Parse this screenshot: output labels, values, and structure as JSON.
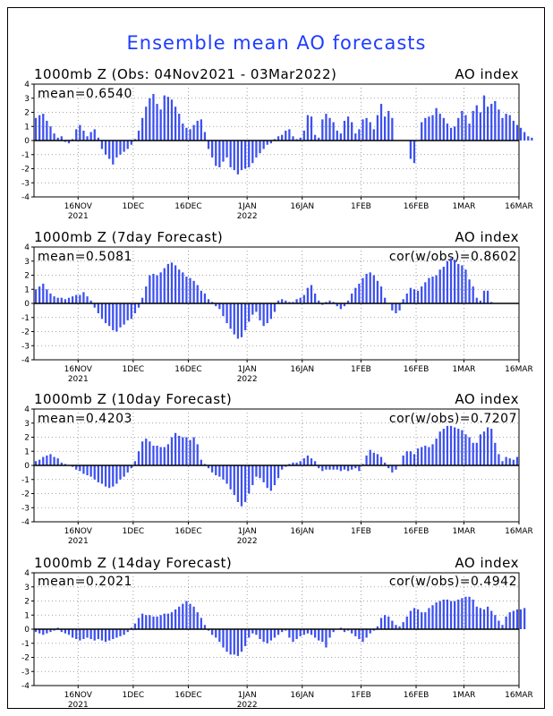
{
  "figure_title": "Ensemble mean AO forecasts",
  "colors": {
    "bar": "#3c50f0",
    "title": "#1e3cff",
    "grid": "#888888"
  },
  "chart_data": [
    {
      "type": "bar",
      "title": "1000mb Z (Obs: 04Nov2021 - 03Mar2022)",
      "index_label": "AO index",
      "mean_label": "mean=0.6540",
      "cor_label": "",
      "ylim": [
        -4,
        4
      ],
      "yticks": [
        4,
        3,
        2,
        1,
        0,
        -1,
        -2,
        -3,
        -4
      ],
      "grid": true,
      "x_start": "2021-11-04",
      "x_end": "2022-03-16",
      "xticks": [
        {
          "label": "16NOV",
          "sublabel": "2021",
          "date": "2021-11-16"
        },
        {
          "label": "1DEC",
          "sublabel": "",
          "date": "2021-12-01"
        },
        {
          "label": "16DEC",
          "sublabel": "",
          "date": "2021-12-16"
        },
        {
          "label": "1JAN",
          "sublabel": "2022",
          "date": "2022-01-01"
        },
        {
          "label": "16JAN",
          "sublabel": "",
          "date": "2022-01-16"
        },
        {
          "label": "1FEB",
          "sublabel": "",
          "date": "2022-02-01"
        },
        {
          "label": "16FEB",
          "sublabel": "",
          "date": "2022-02-16"
        },
        {
          "label": "1MAR",
          "sublabel": "",
          "date": "2022-03-01"
        },
        {
          "label": "16MAR",
          "sublabel": "",
          "date": "2022-03-16"
        }
      ],
      "values": [
        1.6,
        1.8,
        1.9,
        1.4,
        1.0,
        0.5,
        0.2,
        0.3,
        -0.1,
        -0.2,
        0.1,
        0.8,
        1.1,
        0.7,
        0.3,
        0.6,
        0.8,
        0.2,
        -0.6,
        -1.0,
        -1.3,
        -1.7,
        -1.2,
        -1.0,
        -0.8,
        -0.6,
        -0.3,
        0.1,
        0.7,
        1.6,
        2.4,
        3.0,
        3.3,
        2.6,
        2.2,
        3.2,
        3.1,
        2.9,
        2.4,
        1.9,
        1.2,
        0.9,
        0.8,
        1.1,
        1.4,
        1.5,
        0.6,
        -0.6,
        -1.2,
        -1.8,
        -1.9,
        -1.5,
        -1.2,
        -1.9,
        -2.1,
        -2.4,
        -2.1,
        -2.0,
        -1.9,
        -1.6,
        -1.2,
        -0.9,
        -0.6,
        -0.3,
        -0.2,
        0.1,
        0.3,
        0.4,
        0.7,
        0.8,
        0.3,
        0.1,
        0.2,
        0.7,
        1.8,
        1.7,
        0.4,
        0.2,
        1.5,
        1.9,
        1.6,
        1.3,
        0.7,
        0.5,
        1.4,
        1.7,
        1.3,
        0.5,
        0.8,
        1.5,
        1.6,
        1.3,
        0.8,
        1.8,
        2.6,
        1.7,
        2.1,
        1.6,
        0.0,
        0.0,
        0.0,
        0.0,
        -1.3,
        -1.6,
        0.0,
        1.3,
        1.6,
        1.7,
        1.8,
        2.3,
        1.9,
        1.6,
        1.2,
        0.9,
        1.0,
        1.6,
        2.1,
        1.8,
        1.2,
        2.1,
        2.5,
        2.0,
        3.2,
        2.4,
        2.6,
        2.8,
        2.2,
        1.6,
        1.9,
        1.8,
        1.4,
        1.1,
        0.9,
        0.6,
        0.3,
        0.2
      ]
    },
    {
      "type": "bar",
      "title": "1000mb Z (7day Forecast)",
      "index_label": "AO index",
      "mean_label": "mean=0.5081",
      "cor_label": "cor(w/obs)=0.8602",
      "ylim": [
        -4,
        4
      ],
      "yticks": [
        4,
        3,
        2,
        1,
        0,
        -1,
        -2,
        -3,
        -4
      ],
      "grid": true,
      "x_start": "2021-11-04",
      "x_end": "2022-03-16",
      "xticks": [
        {
          "label": "16NOV",
          "sublabel": "2021",
          "date": "2021-11-16"
        },
        {
          "label": "1DEC",
          "sublabel": "",
          "date": "2021-12-01"
        },
        {
          "label": "16DEC",
          "sublabel": "",
          "date": "2021-12-16"
        },
        {
          "label": "1JAN",
          "sublabel": "2022",
          "date": "2022-01-01"
        },
        {
          "label": "16JAN",
          "sublabel": "",
          "date": "2022-01-16"
        },
        {
          "label": "1FEB",
          "sublabel": "",
          "date": "2022-02-01"
        },
        {
          "label": "16FEB",
          "sublabel": "",
          "date": "2022-02-16"
        },
        {
          "label": "1MAR",
          "sublabel": "",
          "date": "2022-03-01"
        },
        {
          "label": "16MAR",
          "sublabel": "",
          "date": "2022-03-16"
        }
      ],
      "values": [
        1.0,
        1.2,
        1.4,
        1.0,
        0.7,
        0.5,
        0.4,
        0.4,
        0.3,
        0.4,
        0.5,
        0.6,
        0.6,
        0.8,
        0.5,
        0.2,
        -0.3,
        -0.7,
        -1.1,
        -1.4,
        -1.6,
        -1.9,
        -2.0,
        -1.7,
        -1.5,
        -1.2,
        -1.1,
        -0.7,
        -0.3,
        0.4,
        1.2,
        2.0,
        2.1,
        2.0,
        2.2,
        2.5,
        2.8,
        2.9,
        2.7,
        2.4,
        2.2,
        1.9,
        1.8,
        1.6,
        1.3,
        0.9,
        0.7,
        0.3,
        0.1,
        -0.2,
        -0.4,
        -0.9,
        -1.4,
        -1.8,
        -2.2,
        -2.5,
        -2.4,
        -1.9,
        -1.3,
        -0.8,
        -0.6,
        -1.2,
        -1.6,
        -1.4,
        -1.1,
        -0.6,
        0.2,
        0.3,
        0.2,
        0.1,
        0.1,
        0.3,
        0.4,
        0.6,
        1.1,
        1.3,
        0.7,
        0.2,
        -0.1,
        0.1,
        0.2,
        0.1,
        -0.2,
        -0.4,
        -0.2,
        0.2,
        0.7,
        1.1,
        1.4,
        1.8,
        2.1,
        2.2,
        2.0,
        1.6,
        1.2,
        0.4,
        0.0,
        -0.5,
        -0.7,
        -0.5,
        0.3,
        0.7,
        1.1,
        1.0,
        0.9,
        1.2,
        1.5,
        1.8,
        1.9,
        2.0,
        2.4,
        2.6,
        3.0,
        3.2,
        3.1,
        2.8,
        2.7,
        2.4,
        1.7,
        1.2,
        0.4,
        0.2,
        0.9,
        0.9,
        0.1,
        0.0
      ]
    },
    {
      "type": "bar",
      "title": "1000mb Z (10day Forecast)",
      "index_label": "AO index",
      "mean_label": "mean=0.4203",
      "cor_label": "cor(w/obs)=0.7207",
      "ylim": [
        -4,
        4
      ],
      "yticks": [
        4,
        3,
        2,
        1,
        0,
        -1,
        -2,
        -3,
        -4
      ],
      "grid": true,
      "x_start": "2021-11-04",
      "x_end": "2022-03-16",
      "xticks": [
        {
          "label": "16NOV",
          "sublabel": "2021",
          "date": "2021-11-16"
        },
        {
          "label": "1DEC",
          "sublabel": "",
          "date": "2021-12-01"
        },
        {
          "label": "16DEC",
          "sublabel": "",
          "date": "2021-12-16"
        },
        {
          "label": "1JAN",
          "sublabel": "2022",
          "date": "2022-01-01"
        },
        {
          "label": "16JAN",
          "sublabel": "",
          "date": "2022-01-16"
        },
        {
          "label": "1FEB",
          "sublabel": "",
          "date": "2022-02-01"
        },
        {
          "label": "16FEB",
          "sublabel": "",
          "date": "2022-02-16"
        },
        {
          "label": "1MAR",
          "sublabel": "",
          "date": "2022-03-01"
        },
        {
          "label": "16MAR",
          "sublabel": "",
          "date": "2022-03-16"
        }
      ],
      "values": [
        0.3,
        0.4,
        0.6,
        0.7,
        0.8,
        0.6,
        0.5,
        0.2,
        0.1,
        0.0,
        -0.1,
        -0.3,
        -0.4,
        -0.6,
        -0.7,
        -0.8,
        -1.0,
        -1.2,
        -1.3,
        -1.5,
        -1.6,
        -1.5,
        -1.3,
        -1.0,
        -0.8,
        -0.5,
        -0.2,
        0.3,
        1.0,
        1.7,
        1.9,
        1.7,
        1.4,
        1.4,
        1.3,
        1.3,
        1.5,
        2.0,
        2.3,
        2.1,
        2.0,
        2.0,
        1.8,
        2.0,
        1.5,
        0.4,
        0.1,
        -0.2,
        -0.5,
        -0.7,
        -0.8,
        -1.0,
        -1.3,
        -1.7,
        -2.1,
        -2.6,
        -2.9,
        -2.6,
        -2.0,
        -1.4,
        -0.8,
        -0.9,
        -1.2,
        -1.6,
        -1.8,
        -1.4,
        -0.9,
        -0.3,
        -0.1,
        0.1,
        0.2,
        0.2,
        0.3,
        0.5,
        0.7,
        0.5,
        0.3,
        -0.2,
        -0.4,
        -0.3,
        -0.3,
        -0.3,
        -0.3,
        -0.4,
        -0.3,
        -0.4,
        -0.3,
        -0.2,
        -0.4,
        0.1,
        0.7,
        1.1,
        0.9,
        0.8,
        0.6,
        0.2,
        -0.2,
        -0.5,
        -0.3,
        0.0,
        0.7,
        1.0,
        1.0,
        0.8,
        1.2,
        1.3,
        1.4,
        1.3,
        1.5,
        1.9,
        2.4,
        2.6,
        2.8,
        2.8,
        2.7,
        2.6,
        2.5,
        2.2,
        2.0,
        1.6,
        1.6,
        2.2,
        2.4,
        2.7,
        2.6,
        1.6,
        0.8,
        0.3,
        0.6,
        0.5,
        0.4,
        0.6,
        0.0
      ]
    },
    {
      "type": "bar",
      "title": "1000mb Z (14day Forecast)",
      "index_label": "AO index",
      "mean_label": "mean=0.2021",
      "cor_label": "cor(w/obs)=0.4942",
      "ylim": [
        -4,
        4
      ],
      "yticks": [
        4,
        3,
        2,
        1,
        0,
        -1,
        -2,
        -3,
        -4
      ],
      "grid": true,
      "x_start": "2021-11-04",
      "x_end": "2022-03-16",
      "xticks": [
        {
          "label": "16NOV",
          "sublabel": "2021",
          "date": "2021-11-16"
        },
        {
          "label": "1DEC",
          "sublabel": "",
          "date": "2021-12-01"
        },
        {
          "label": "16DEC",
          "sublabel": "",
          "date": "2021-12-16"
        },
        {
          "label": "1JAN",
          "sublabel": "2022",
          "date": "2022-01-01"
        },
        {
          "label": "16JAN",
          "sublabel": "",
          "date": "2022-01-16"
        },
        {
          "label": "1FEB",
          "sublabel": "",
          "date": "2022-02-01"
        },
        {
          "label": "16FEB",
          "sublabel": "",
          "date": "2022-02-16"
        },
        {
          "label": "1MAR",
          "sublabel": "",
          "date": "2022-03-01"
        },
        {
          "label": "16MAR",
          "sublabel": "",
          "date": "2022-03-16"
        }
      ],
      "values": [
        -0.2,
        -0.3,
        -0.4,
        -0.3,
        -0.2,
        -0.1,
        0.1,
        -0.2,
        -0.3,
        -0.4,
        -0.6,
        -0.7,
        -0.8,
        -0.7,
        -0.6,
        -0.7,
        -0.8,
        -0.7,
        -0.8,
        -0.9,
        -0.8,
        -0.7,
        -0.6,
        -0.5,
        -0.4,
        -0.2,
        0.1,
        0.4,
        0.8,
        1.1,
        1.0,
        1.0,
        0.9,
        0.9,
        1.0,
        1.1,
        1.1,
        1.2,
        1.4,
        1.6,
        1.8,
        2.0,
        1.8,
        1.6,
        1.2,
        0.8,
        0.3,
        -0.1,
        -0.4,
        -0.6,
        -0.9,
        -1.3,
        -1.6,
        -1.8,
        -1.8,
        -1.9,
        -1.6,
        -1.2,
        -0.6,
        -0.3,
        -0.4,
        -0.7,
        -0.9,
        -1.0,
        -0.8,
        -0.6,
        -0.4,
        -0.2,
        -0.1,
        -0.6,
        -0.9,
        -0.7,
        -0.5,
        -0.4,
        -0.3,
        -0.4,
        -0.6,
        -0.8,
        -0.9,
        -1.3,
        -0.6,
        -0.2,
        0.0,
        0.1,
        -0.2,
        -0.1,
        -0.3,
        -0.5,
        -0.7,
        -0.9,
        -0.6,
        -0.3,
        -0.1,
        0.2,
        0.8,
        1.0,
        0.9,
        0.6,
        0.3,
        0.2,
        0.5,
        0.9,
        1.3,
        1.5,
        1.4,
        1.2,
        1.2,
        1.5,
        1.7,
        1.9,
        2.0,
        2.1,
        2.1,
        2.0,
        2.0,
        2.1,
        2.2,
        2.3,
        2.3,
        2.1,
        1.6,
        1.5,
        1.4,
        1.6,
        1.3,
        1.0,
        0.6,
        0.3,
        0.9,
        1.2,
        1.3,
        1.4,
        1.4,
        1.5
      ]
    }
  ]
}
